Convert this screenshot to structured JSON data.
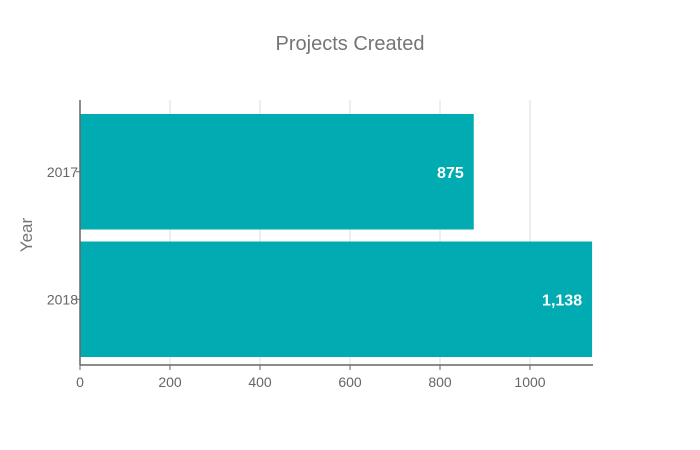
{
  "chart_data": {
    "type": "bar",
    "orientation": "horizontal",
    "title": "Projects Created",
    "ylabel": "Year",
    "xlabel": "",
    "categories": [
      "2017",
      "2018"
    ],
    "values": [
      875,
      1138
    ],
    "value_labels": [
      "875",
      "1,138"
    ],
    "xlim": [
      0,
      1140
    ],
    "x_ticks": [
      0,
      200,
      400,
      600,
      800,
      1000
    ],
    "x_tick_labels": [
      "0",
      "200",
      "400",
      "600",
      "800",
      "1000"
    ],
    "grid": true,
    "legend": "none",
    "bar_color": "#00abb1",
    "grid_color": "#dddddd",
    "axis_color": "#666666"
  }
}
